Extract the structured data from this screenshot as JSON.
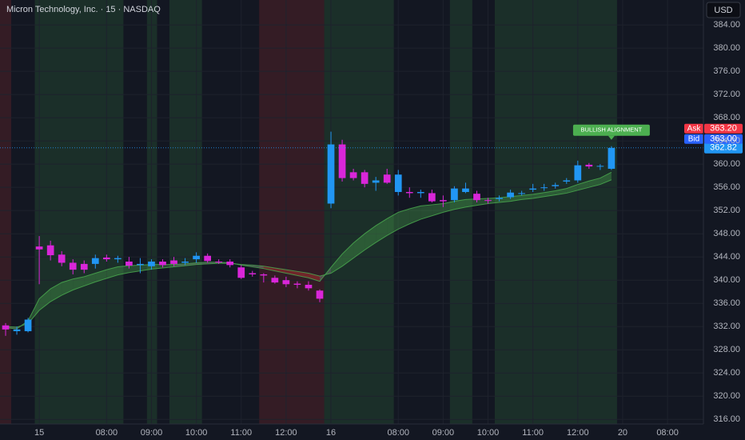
{
  "chart_data": {
    "type": "candlestick",
    "title": "Micron Technology, Inc. · 15 · NASDAQ",
    "currency": "USD",
    "x": [
      0,
      1,
      2,
      3,
      4,
      5,
      6,
      7,
      8,
      9,
      10,
      11,
      12,
      13,
      14,
      15,
      16,
      17,
      18,
      19,
      20,
      21,
      22,
      23,
      24,
      25,
      26,
      27,
      28,
      29,
      30,
      31,
      32,
      33,
      34,
      35,
      36,
      37,
      38,
      39,
      40,
      41,
      42,
      43,
      44,
      45,
      46,
      47,
      48,
      49,
      50,
      51,
      52,
      53,
      54
    ],
    "open": [
      332.2,
      331.2,
      331.2,
      345.8,
      346.0,
      344.4,
      343.0,
      342.8,
      342.8,
      343.9,
      343.6,
      343.2,
      342.6,
      342.4,
      343.2,
      343.4,
      343.0,
      343.6,
      344.2,
      343.2,
      343.2,
      342.2,
      341.2,
      341.0,
      340.4,
      340.0,
      339.4,
      339.2,
      338.2,
      353.2,
      363.4,
      358.6,
      358.6,
      356.8,
      358.2,
      355.2,
      355.2,
      355.0,
      355.0,
      353.8,
      353.8,
      355.2,
      354.9,
      353.8,
      354.0,
      354.3,
      355.0,
      355.6,
      356.0,
      356.2,
      357.0,
      357.2,
      359.9,
      359.6,
      359.2
    ],
    "high": [
      332.6,
      332.0,
      333.5,
      347.6,
      346.8,
      345.0,
      343.6,
      343.4,
      344.4,
      344.4,
      344.2,
      344.0,
      343.8,
      343.6,
      343.6,
      344.0,
      343.8,
      344.8,
      344.6,
      343.6,
      343.6,
      342.6,
      341.6,
      341.2,
      340.8,
      340.6,
      339.8,
      339.8,
      338.4,
      365.6,
      364.2,
      359.2,
      359.0,
      357.8,
      359.2,
      359.0,
      356.0,
      355.6,
      355.6,
      354.6,
      356.2,
      356.8,
      355.4,
      354.2,
      354.6,
      355.6,
      355.4,
      356.6,
      356.6,
      356.8,
      357.6,
      360.6,
      360.2,
      360.0,
      363.1
    ],
    "low": [
      330.4,
      330.6,
      331.0,
      339.3,
      343.4,
      342.4,
      341.0,
      341.2,
      342.0,
      343.2,
      343.0,
      342.0,
      341.2,
      341.8,
      342.2,
      342.4,
      342.6,
      343.0,
      343.0,
      342.8,
      342.2,
      340.2,
      340.6,
      339.6,
      339.4,
      338.8,
      338.6,
      338.2,
      336.2,
      352.4,
      357.0,
      357.2,
      356.0,
      355.4,
      356.6,
      354.6,
      354.2,
      354.2,
      353.4,
      352.6,
      353.4,
      355.0,
      353.4,
      353.2,
      353.6,
      354.0,
      354.6,
      355.2,
      355.4,
      355.8,
      356.6,
      356.8,
      359.2,
      359.0,
      359.0
    ],
    "close": [
      331.5,
      331.5,
      333.2,
      345.3,
      344.3,
      343.0,
      341.8,
      341.8,
      343.8,
      343.6,
      343.8,
      342.5,
      342.8,
      343.2,
      342.6,
      342.8,
      343.2,
      344.2,
      343.3,
      343.1,
      342.6,
      340.4,
      341.0,
      340.8,
      339.6,
      339.3,
      339.2,
      338.6,
      336.8,
      363.4,
      357.6,
      357.6,
      356.6,
      357.2,
      356.8,
      358.2,
      355.0,
      355.2,
      353.6,
      353.6,
      355.8,
      355.8,
      353.8,
      353.7,
      354.2,
      355.1,
      355.0,
      355.8,
      356.0,
      356.4,
      357.2,
      359.8,
      359.6,
      359.7,
      362.8
    ],
    "up_color": "#2196f3",
    "down_color": "#d926d9",
    "ribbon": {
      "fast": [
        331.8,
        331.6,
        333,
        336.8,
        338.5,
        339.6,
        340.2,
        340.6,
        341.2,
        341.8,
        342.3,
        342.5,
        342.6,
        342.7,
        342.7,
        342.7,
        342.8,
        343.0,
        343.1,
        343.1,
        343.0,
        342.6,
        342.3,
        342.0,
        341.6,
        341.2,
        340.8,
        340.4,
        339.8,
        342.2,
        344.5,
        346.4,
        348,
        349.4,
        350.6,
        351.7,
        352.3,
        352.8,
        353.0,
        353.2,
        353.6,
        353.9,
        354.0,
        354.1,
        354.2,
        354.4,
        354.6,
        354.8,
        355.1,
        355.4,
        355.8,
        356.5,
        357.1,
        357.6,
        358.6
      ],
      "slow": [
        332,
        331.9,
        332.5,
        334.8,
        336.3,
        337.4,
        338.3,
        339.0,
        339.7,
        340.3,
        340.9,
        341.3,
        341.6,
        341.9,
        342.1,
        342.3,
        342.5,
        342.7,
        342.8,
        342.9,
        342.9,
        342.7,
        342.6,
        342.4,
        342.1,
        341.8,
        341.5,
        341.2,
        340.7,
        341.2,
        342.4,
        343.8,
        345.2,
        346.5,
        347.7,
        348.8,
        349.7,
        350.5,
        351.1,
        351.7,
        352.2,
        352.6,
        352.9,
        353.2,
        353.4,
        353.6,
        353.9,
        354.1,
        354.4,
        354.7,
        355.0,
        355.5,
        356.0,
        356.5,
        357.3
      ],
      "up_color": "#4caf50",
      "down_color": "#e53935",
      "flat_color": "#9e9e9e"
    },
    "regions": [
      {
        "from": -0.5,
        "to": 0.5,
        "color": "#e53935"
      },
      {
        "from": 2.6,
        "to": 10.5,
        "color": "#4caf50"
      },
      {
        "from": 12.6,
        "to": 13.5,
        "color": "#4caf50"
      },
      {
        "from": 14.6,
        "to": 17.5,
        "color": "#4caf50"
      },
      {
        "from": 22.6,
        "to": 28.4,
        "color": "#e53935"
      },
      {
        "from": 28.4,
        "to": 34.6,
        "color": "#4caf50"
      },
      {
        "from": 39.6,
        "to": 41.6,
        "color": "#4caf50"
      },
      {
        "from": 43.6,
        "to": 54.5,
        "color": "#4caf50"
      }
    ],
    "annotation": {
      "text": "BULLISH ALIGNMENT",
      "x": 54,
      "color": "#4caf50"
    },
    "quotes": [
      {
        "name": "Ask",
        "value": 363.2,
        "value_label": "363.20",
        "color": "#f23645"
      },
      {
        "name": "Bid",
        "value": 363.0,
        "value_label": "363.00",
        "color": "#2962ff"
      }
    ],
    "last": {
      "value": 362.82,
      "color": "#2196f3"
    },
    "xlim": [
      -0.5,
      62.2
    ],
    "xticks": [
      {
        "value": 3,
        "label": "15"
      },
      {
        "value": 9,
        "label": "08:00"
      },
      {
        "value": 13,
        "label": "09:00"
      },
      {
        "value": 17,
        "label": "10:00"
      },
      {
        "value": 21,
        "label": "11:00"
      },
      {
        "value": 25,
        "label": "12:00"
      },
      {
        "value": 29,
        "label": "16"
      },
      {
        "value": 35,
        "label": "08:00"
      },
      {
        "value": 39,
        "label": "09:00"
      },
      {
        "value": 43,
        "label": "10:00"
      },
      {
        "value": 47,
        "label": "11:00"
      },
      {
        "value": 51,
        "label": "12:00"
      },
      {
        "value": 55,
        "label": "20"
      },
      {
        "value": 59,
        "label": "08:00"
      }
    ],
    "ylim": [
      315.2,
      388.3
    ],
    "yticks": [
      {
        "value": 316,
        "label": "316.00"
      },
      {
        "value": 320,
        "label": "320.00"
      },
      {
        "value": 324,
        "label": "324.00"
      },
      {
        "value": 328,
        "label": "328.00"
      },
      {
        "value": 332,
        "label": "332.00"
      },
      {
        "value": 336,
        "label": "336.00"
      },
      {
        "value": 340,
        "label": "340.00"
      },
      {
        "value": 344,
        "label": "344.00"
      },
      {
        "value": 348,
        "label": "348.00"
      },
      {
        "value": 352,
        "label": "352.00"
      },
      {
        "value": 356,
        "label": "356.00"
      },
      {
        "value": 360,
        "label": "360.00"
      },
      {
        "value": 364,
        "label": "364.00"
      },
      {
        "value": 368,
        "label": "368.00"
      },
      {
        "value": 372,
        "label": "372.00"
      },
      {
        "value": 376,
        "label": "376.00"
      },
      {
        "value": 380,
        "label": "380.00"
      },
      {
        "value": 384,
        "label": "384.00"
      }
    ],
    "grid": true
  }
}
